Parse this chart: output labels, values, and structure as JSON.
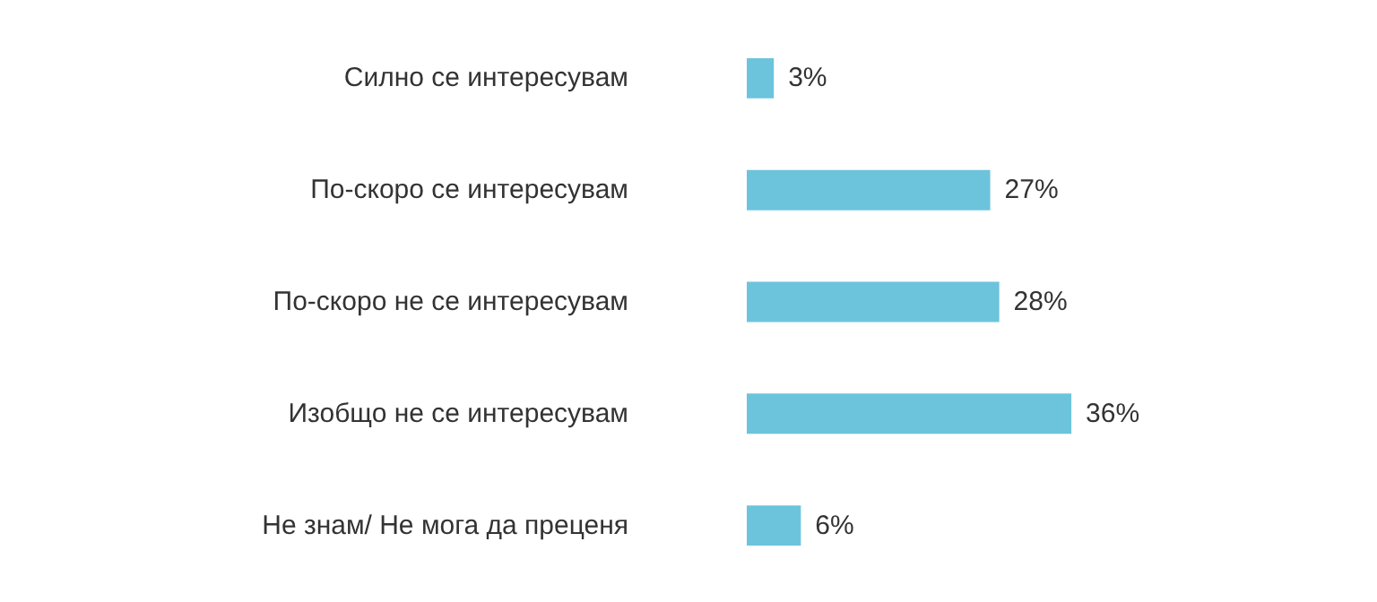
{
  "chart_data": {
    "type": "bar",
    "orientation": "horizontal",
    "categories": [
      "Силно се интересувам",
      "По-скоро се интересувам",
      "По-скоро не се интересувам",
      "Изобщо не се интересувам",
      "Не знам/ Не мога да преценя"
    ],
    "values": [
      3,
      27,
      28,
      36,
      6
    ],
    "value_labels": [
      "3%",
      "27%",
      "28%",
      "36%",
      "6%"
    ],
    "color": "#6cc4dc",
    "grid": false
  }
}
